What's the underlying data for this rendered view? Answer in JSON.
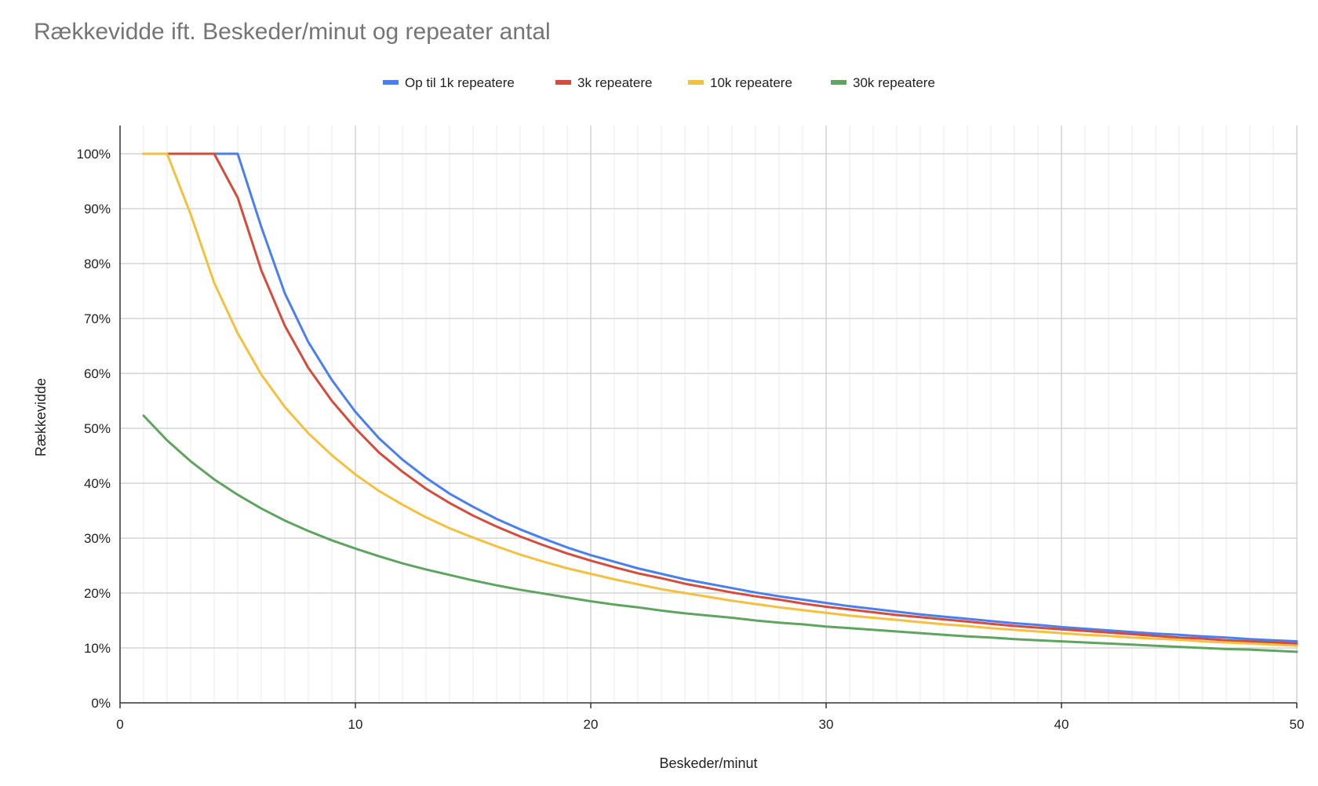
{
  "chart_data": {
    "type": "line",
    "title": "Rækkevidde ift. Beskeder/minut og repeater antal",
    "xlabel": "Beskeder/minut",
    "ylabel": "Rækkevidde",
    "xlim": [
      0,
      50
    ],
    "ylim": [
      0,
      1.05
    ],
    "x_ticks": [
      0,
      10,
      20,
      30,
      40,
      50
    ],
    "x_tick_labels": [
      "0",
      "10",
      "20",
      "30",
      "40",
      "50"
    ],
    "y_ticks": [
      0,
      0.1,
      0.2,
      0.3,
      0.4,
      0.5,
      0.6,
      0.7,
      0.8,
      0.9,
      1.0
    ],
    "y_tick_labels": [
      "0%",
      "10%",
      "20%",
      "30%",
      "40%",
      "50%",
      "60%",
      "70%",
      "80%",
      "90%",
      "100%"
    ],
    "grid": true,
    "minor_x_grid_step": 1,
    "legend_position": "top",
    "x": [
      1,
      2,
      3,
      4,
      5,
      6,
      7,
      8,
      9,
      10,
      11,
      12,
      13,
      14,
      15,
      16,
      17,
      18,
      19,
      20,
      21,
      22,
      23,
      24,
      25,
      26,
      27,
      28,
      29,
      30,
      31,
      32,
      33,
      34,
      35,
      36,
      37,
      38,
      39,
      40,
      41,
      42,
      43,
      44,
      45,
      46,
      47,
      48,
      49,
      50
    ],
    "series": [
      {
        "name": "Op til 1k repeatere",
        "color": "#4a7ff0",
        "values": [
          1.0,
          1.0,
          1.0,
          1.0,
          1.0,
          0.867,
          0.746,
          0.657,
          0.588,
          0.53,
          0.482,
          0.443,
          0.41,
          0.381,
          0.357,
          0.335,
          0.316,
          0.299,
          0.283,
          0.269,
          0.257,
          0.245,
          0.235,
          0.225,
          0.217,
          0.209,
          0.201,
          0.194,
          0.188,
          0.182,
          0.176,
          0.171,
          0.166,
          0.161,
          0.157,
          0.153,
          0.149,
          0.145,
          0.142,
          0.138,
          0.135,
          0.132,
          0.129,
          0.126,
          0.124,
          0.121,
          0.119,
          0.116,
          0.114,
          0.112
        ]
      },
      {
        "name": "3k repeatere",
        "color": "#d44c3b",
        "values": [
          1.0,
          1.0,
          1.0,
          1.0,
          0.92,
          0.788,
          0.687,
          0.61,
          0.55,
          0.5,
          0.456,
          0.421,
          0.39,
          0.364,
          0.341,
          0.321,
          0.303,
          0.287,
          0.272,
          0.259,
          0.247,
          0.236,
          0.227,
          0.217,
          0.209,
          0.201,
          0.194,
          0.188,
          0.181,
          0.175,
          0.17,
          0.165,
          0.16,
          0.156,
          0.152,
          0.148,
          0.144,
          0.14,
          0.137,
          0.134,
          0.131,
          0.128,
          0.125,
          0.122,
          0.119,
          0.117,
          0.114,
          0.112,
          0.11,
          0.108
        ]
      },
      {
        "name": "10k repeatere",
        "color": "#f4c03f",
        "values": [
          1.0,
          1.0,
          0.89,
          0.765,
          0.673,
          0.598,
          0.539,
          0.491,
          0.451,
          0.416,
          0.386,
          0.361,
          0.338,
          0.318,
          0.301,
          0.285,
          0.27,
          0.257,
          0.245,
          0.235,
          0.225,
          0.216,
          0.207,
          0.2,
          0.193,
          0.186,
          0.18,
          0.174,
          0.169,
          0.164,
          0.159,
          0.155,
          0.151,
          0.147,
          0.143,
          0.14,
          0.136,
          0.133,
          0.13,
          0.127,
          0.124,
          0.122,
          0.119,
          0.117,
          0.115,
          0.112,
          0.11,
          0.108,
          0.106,
          0.104
        ]
      },
      {
        "name": "30k repeatere",
        "color": "#5ea55f",
        "values": [
          0.523,
          0.478,
          0.44,
          0.407,
          0.379,
          0.354,
          0.332,
          0.313,
          0.296,
          0.281,
          0.267,
          0.254,
          0.243,
          0.233,
          0.223,
          0.214,
          0.206,
          0.199,
          0.192,
          0.185,
          0.179,
          0.174,
          0.168,
          0.163,
          0.159,
          0.155,
          0.15,
          0.146,
          0.143,
          0.139,
          0.136,
          0.133,
          0.13,
          0.127,
          0.124,
          0.121,
          0.119,
          0.116,
          0.114,
          0.112,
          0.11,
          0.108,
          0.106,
          0.104,
          0.102,
          0.1,
          0.098,
          0.097,
          0.095,
          0.093
        ]
      }
    ]
  }
}
